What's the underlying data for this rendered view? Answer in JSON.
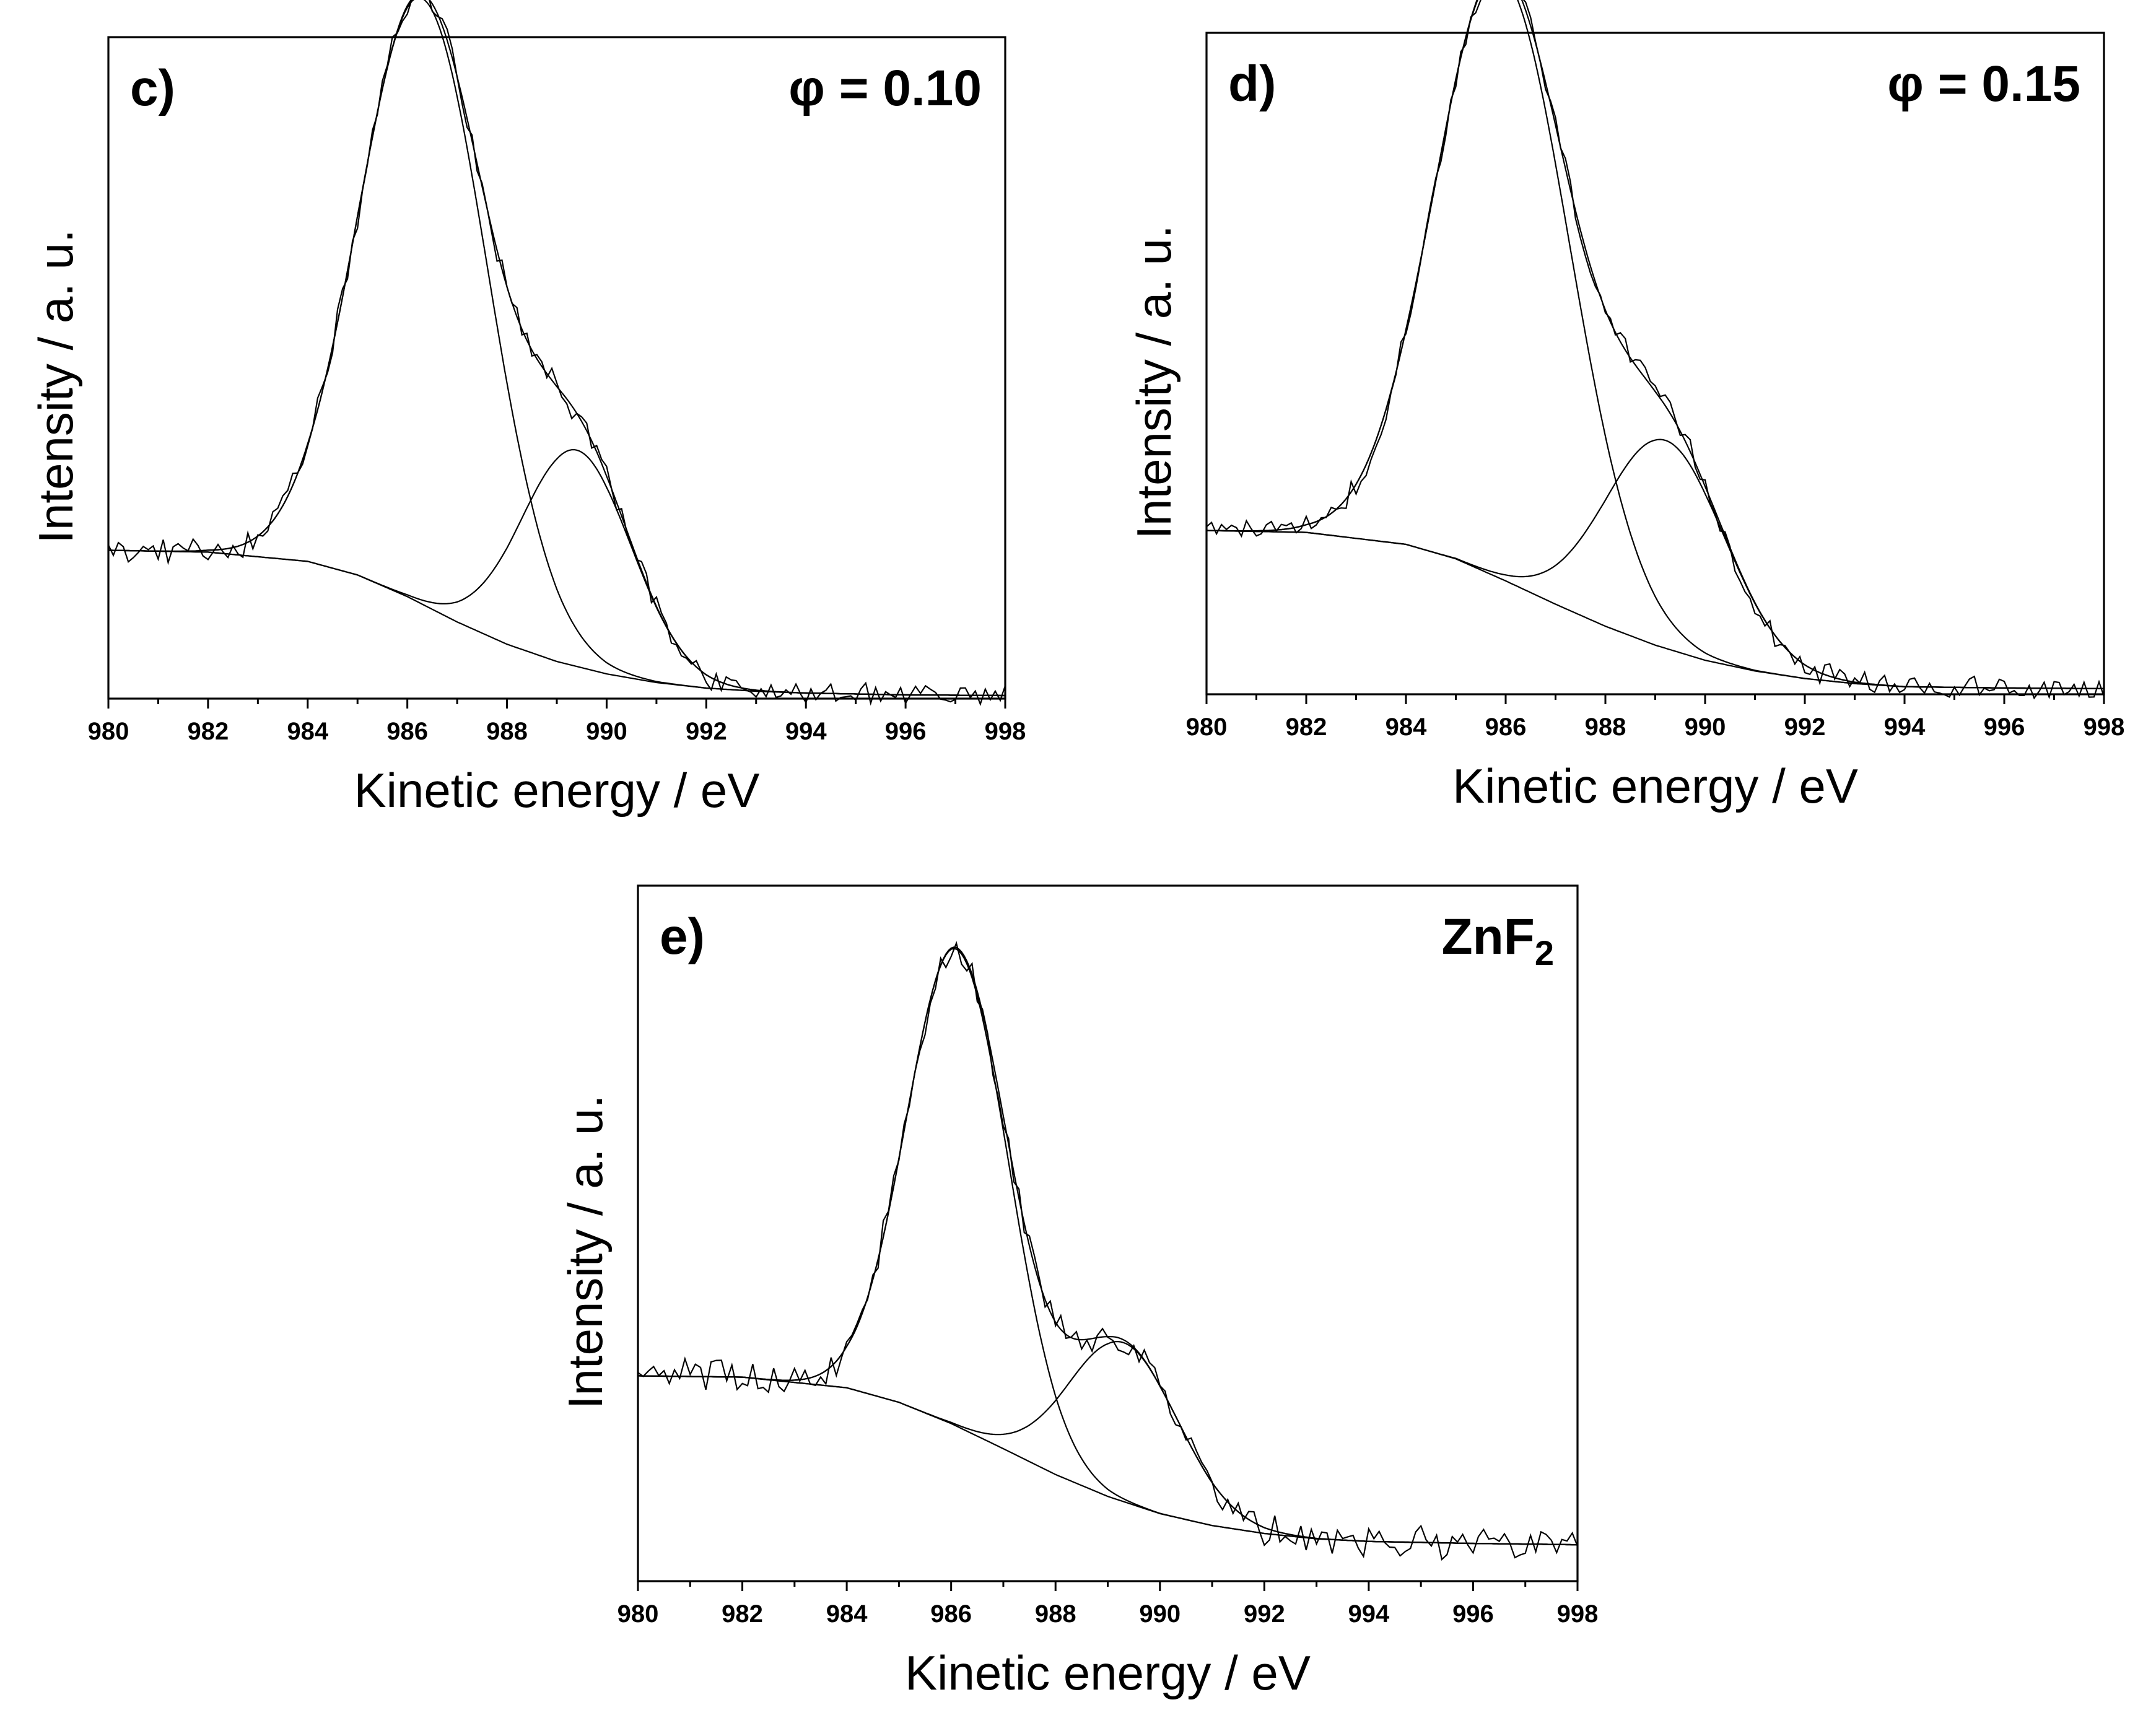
{
  "chart_data": [
    {
      "type": "line",
      "panel_label": "c)",
      "annotation": "φ = 0.10",
      "annotation_subscript": "",
      "xlabel": "Kinetic energy / eV",
      "ylabel": "Intensity / a. u.",
      "xlim": [
        980,
        998
      ],
      "ylim": [
        0,
        1.07
      ],
      "x_ticks": [
        "980",
        "982",
        "984",
        "986",
        "988",
        "990",
        "992",
        "994",
        "996",
        "998"
      ],
      "grid": false,
      "series": [
        {
          "role": "background",
          "points": [
            [
              980,
              0.24
            ],
            [
              982,
              0.237
            ],
            [
              984,
              0.222
            ],
            [
              985,
              0.2
            ],
            [
              986,
              0.165
            ],
            [
              987,
              0.124
            ],
            [
              988,
              0.088
            ],
            [
              989,
              0.06
            ],
            [
              990,
              0.04
            ],
            [
              991,
              0.026
            ],
            [
              992,
              0.017
            ],
            [
              993,
              0.012
            ],
            [
              994,
              0.009
            ],
            [
              996,
              0.006
            ],
            [
              998,
              0.005
            ]
          ]
        },
        {
          "role": "component-1",
          "peak_x": 986.3,
          "peak_height": 0.98,
          "sigma_left": 1.27,
          "sigma_right": 1.31
        },
        {
          "role": "component-2",
          "peak_x": 989.4,
          "peak_height": 0.35,
          "sigma_left": 1.1,
          "sigma_right": 1.1
        },
        {
          "role": "envelope"
        },
        {
          "role": "raw-spectrum",
          "noise": 0.014
        }
      ]
    },
    {
      "type": "line",
      "panel_label": "d)",
      "annotation": "φ = 0.15",
      "annotation_subscript": "",
      "xlabel": "Kinetic energy / eV",
      "ylabel": "Intensity / a. u.",
      "xlim": [
        980,
        998
      ],
      "ylim": [
        0,
        1.05
      ],
      "x_ticks": [
        "980",
        "982",
        "984",
        "986",
        "988",
        "990",
        "992",
        "994",
        "996",
        "998"
      ],
      "grid": false,
      "series": [
        {
          "role": "background",
          "points": [
            [
              980,
              0.26
            ],
            [
              982,
              0.257
            ],
            [
              984,
              0.238
            ],
            [
              985,
              0.215
            ],
            [
              986,
              0.18
            ],
            [
              987,
              0.143
            ],
            [
              988,
              0.108
            ],
            [
              989,
              0.078
            ],
            [
              990,
              0.054
            ],
            [
              991,
              0.037
            ],
            [
              992,
              0.025
            ],
            [
              993,
              0.017
            ],
            [
              994,
              0.012
            ],
            [
              996,
              0.01
            ],
            [
              998,
              0.009
            ]
          ]
        },
        {
          "role": "component-1",
          "peak_x": 985.9,
          "peak_height": 0.96,
          "sigma_left": 1.32,
          "sigma_right": 1.38
        },
        {
          "role": "component-2",
          "peak_x": 989.2,
          "peak_height": 0.33,
          "sigma_left": 1.2,
          "sigma_right": 1.2
        },
        {
          "role": "envelope"
        },
        {
          "role": "raw-spectrum",
          "noise": 0.013
        }
      ]
    },
    {
      "type": "line",
      "panel_label": "e)",
      "annotation": "ZnF",
      "annotation_subscript": "2",
      "xlabel": "Kinetic energy / eV",
      "ylabel": "Intensity / a. u.",
      "xlim": [
        980,
        998
      ],
      "ylim": [
        -0.05,
        1.0
      ],
      "x_ticks": [
        "980",
        "982",
        "984",
        "986",
        "988",
        "990",
        "992",
        "994",
        "996",
        "998"
      ],
      "grid": false,
      "series": [
        {
          "role": "background",
          "points": [
            [
              980,
              0.26
            ],
            [
              982,
              0.258
            ],
            [
              984,
              0.242
            ],
            [
              985,
              0.22
            ],
            [
              986,
              0.188
            ],
            [
              987,
              0.15
            ],
            [
              988,
              0.111
            ],
            [
              989,
              0.078
            ],
            [
              990,
              0.052
            ],
            [
              991,
              0.034
            ],
            [
              992,
              0.022
            ],
            [
              993,
              0.014
            ],
            [
              994,
              0.01
            ],
            [
              996,
              0.007
            ],
            [
              998,
              0.005
            ]
          ]
        },
        {
          "role": "component-1",
          "peak_x": 986.1,
          "peak_height": 0.72,
          "sigma_left": 0.95,
          "sigma_right": 1.0
        },
        {
          "role": "component-2",
          "peak_x": 989.3,
          "peak_height": 0.24,
          "sigma_left": 1.05,
          "sigma_right": 1.05
        },
        {
          "role": "envelope"
        },
        {
          "role": "raw-spectrum",
          "noise": 0.018
        }
      ]
    }
  ]
}
